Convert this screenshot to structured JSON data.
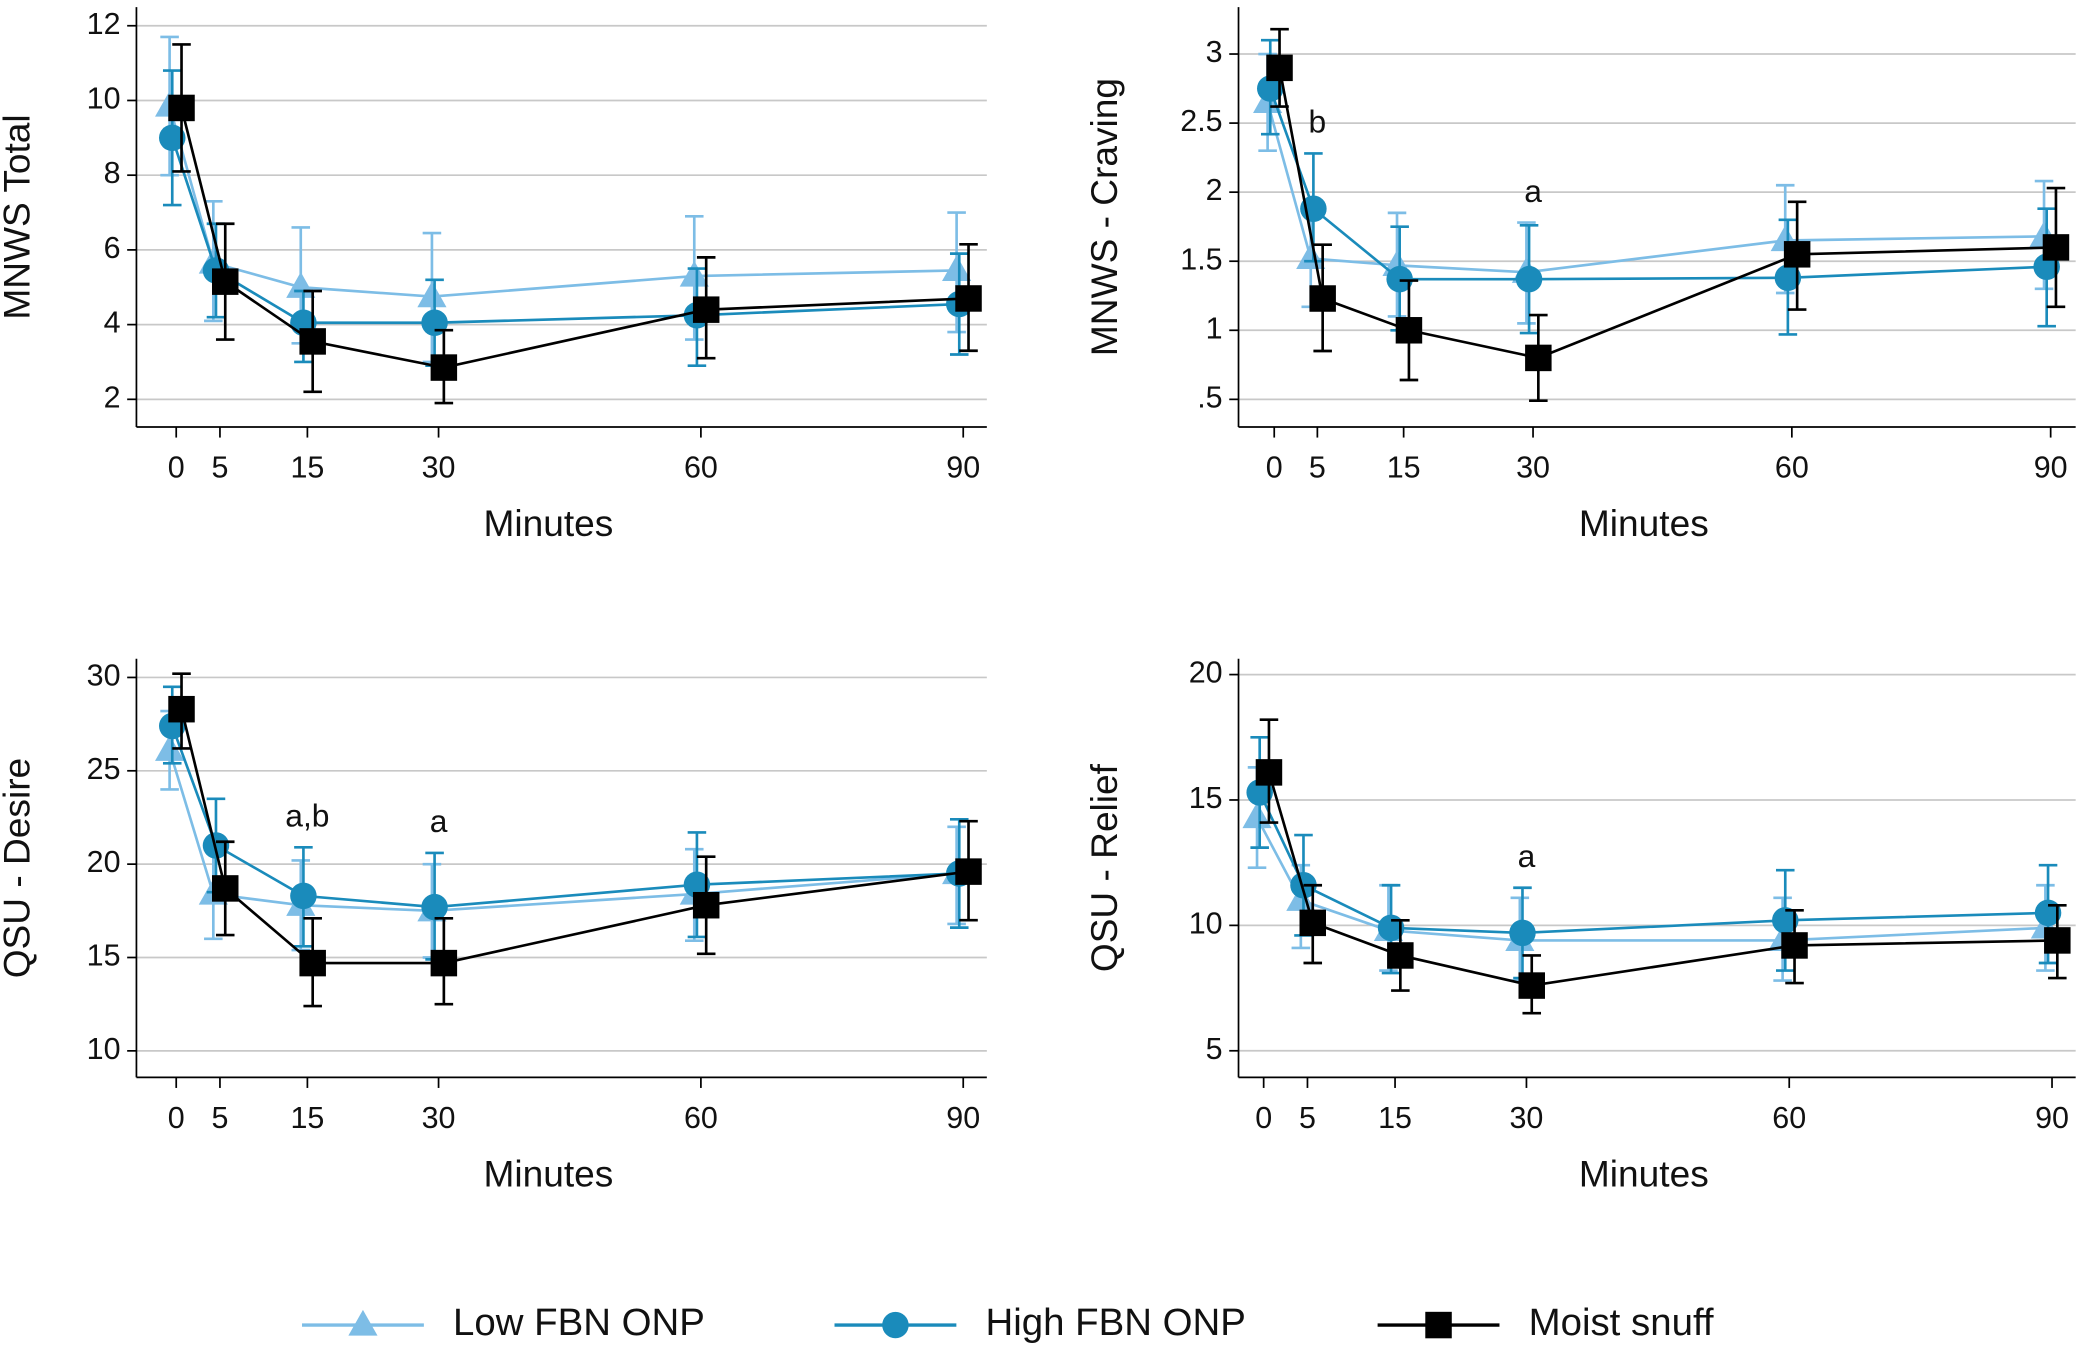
{
  "legend": {
    "position": "bottom",
    "entries": [
      {
        "name": "Low FBN ONP",
        "color": "#7dbde6",
        "marker": "triangle"
      },
      {
        "name": "High FBN ONP",
        "color": "#1a8bbb",
        "marker": "circle"
      },
      {
        "name": "Moist snuff",
        "color": "#000000",
        "marker": "square"
      }
    ]
  },
  "chart_data": [
    {
      "type": "line",
      "ylabel": "MNWS Total",
      "xlabel": "Minutes",
      "x": [
        0,
        5,
        15,
        30,
        60,
        90
      ],
      "xlim": [
        -4.55,
        92.7
      ],
      "xticks": [
        0,
        5,
        15,
        30,
        60,
        90
      ],
      "ylim": [
        1.26,
        12.5
      ],
      "yticks": [
        2,
        4,
        6,
        8,
        10,
        12
      ],
      "grid": true,
      "series": [
        {
          "values": [
            9.85,
            5.65,
            5.0,
            4.75,
            5.3,
            5.45
          ],
          "lower": [
            8.0,
            4.1,
            3.5,
            3.0,
            3.6,
            3.8
          ],
          "upper": [
            11.7,
            7.3,
            6.6,
            6.45,
            6.9,
            7.0
          ]
        },
        {
          "values": [
            9.0,
            5.45,
            4.05,
            4.05,
            4.25,
            4.55
          ],
          "lower": [
            7.2,
            4.2,
            3.0,
            2.9,
            2.9,
            3.2
          ],
          "upper": [
            10.8,
            6.7,
            4.9,
            5.2,
            5.5,
            5.9
          ]
        },
        {
          "values": [
            9.8,
            5.15,
            3.55,
            2.85,
            4.4,
            4.7
          ],
          "lower": [
            8.1,
            3.6,
            2.2,
            1.9,
            3.1,
            3.3
          ],
          "upper": [
            11.5,
            6.7,
            4.9,
            3.85,
            5.8,
            6.15
          ]
        }
      ],
      "annotations": []
    },
    {
      "type": "line",
      "ylabel": "MNWS - Craving",
      "xlabel": "Minutes",
      "x": [
        0,
        5,
        15,
        30,
        60,
        90
      ],
      "xlim": [
        -4.14,
        92.9
      ],
      "xticks": [
        0,
        5,
        15,
        30,
        60,
        90
      ],
      "ylim": [
        0.3,
        3.34
      ],
      "yticks": [
        {
          "value": 0.5,
          "label": ".5"
        },
        1,
        1.5,
        2,
        2.5,
        3
      ],
      "grid": true,
      "series": [
        {
          "values": [
            2.65,
            1.52,
            1.47,
            1.42,
            1.65,
            1.68
          ],
          "lower": [
            2.3,
            1.17,
            1.1,
            1.05,
            1.27,
            1.3
          ],
          "upper": [
            3.0,
            1.87,
            1.85,
            1.78,
            2.05,
            2.08
          ]
        },
        {
          "values": [
            2.75,
            1.88,
            1.37,
            1.37,
            1.38,
            1.46
          ],
          "lower": [
            2.42,
            1.5,
            1.0,
            0.98,
            0.97,
            1.03
          ],
          "upper": [
            3.1,
            2.28,
            1.75,
            1.76,
            1.8,
            1.88
          ]
        },
        {
          "values": [
            2.9,
            1.23,
            1.0,
            0.8,
            1.55,
            1.6
          ],
          "lower": [
            2.62,
            0.85,
            0.64,
            0.49,
            1.15,
            1.17
          ],
          "upper": [
            3.18,
            1.62,
            1.36,
            1.11,
            1.93,
            2.03
          ]
        }
      ],
      "annotations": [
        {
          "text": "b",
          "x": 5
        },
        {
          "text": "a",
          "x": 30
        }
      ]
    },
    {
      "type": "line",
      "ylabel": "QSU - Desire",
      "xlabel": "Minutes",
      "x": [
        0,
        5,
        15,
        30,
        60,
        90
      ],
      "xlim": [
        -4.55,
        92.7
      ],
      "xticks": [
        0,
        5,
        15,
        30,
        60,
        90
      ],
      "ylim": [
        8.58,
        31
      ],
      "yticks": [
        10,
        15,
        20,
        25,
        30
      ],
      "grid": true,
      "series": [
        {
          "values": [
            26.1,
            18.4,
            17.8,
            17.5,
            18.4,
            19.5
          ],
          "lower": [
            24.0,
            16.0,
            15.4,
            15.0,
            15.9,
            16.8
          ],
          "upper": [
            28.2,
            20.8,
            20.2,
            20.0,
            20.8,
            22.0
          ]
        },
        {
          "values": [
            27.4,
            21.0,
            18.3,
            17.7,
            18.9,
            19.5
          ],
          "lower": [
            25.4,
            18.5,
            15.6,
            14.9,
            16.1,
            16.6
          ],
          "upper": [
            29.5,
            23.5,
            20.9,
            20.6,
            21.7,
            22.4
          ]
        },
        {
          "values": [
            28.3,
            18.7,
            14.7,
            14.7,
            17.8,
            19.6
          ],
          "lower": [
            26.2,
            16.2,
            12.4,
            12.5,
            15.2,
            17.0
          ],
          "upper": [
            30.2,
            21.2,
            17.1,
            17.1,
            20.4,
            22.3
          ]
        }
      ],
      "annotations": [
        {
          "text": "a,b",
          "x": 15
        },
        {
          "text": "a",
          "x": 30
        }
      ]
    },
    {
      "type": "line",
      "ylabel": "QSU - Relief",
      "xlabel": "Minutes",
      "x": [
        0,
        5,
        15,
        30,
        60,
        90
      ],
      "xlim": [
        -2.87,
        92.7
      ],
      "xticks": [
        0,
        5,
        15,
        30,
        60,
        90
      ],
      "ylim": [
        3.94,
        20.63
      ],
      "yticks": [
        5,
        10,
        15,
        20
      ],
      "grid": true,
      "series": [
        {
          "values": [
            14.3,
            11.0,
            9.8,
            9.4,
            9.4,
            9.9
          ],
          "lower": [
            12.3,
            9.1,
            8.2,
            7.8,
            7.8,
            8.2
          ],
          "upper": [
            16.3,
            12.4,
            11.6,
            11.1,
            11.1,
            11.6
          ]
        },
        {
          "values": [
            15.3,
            11.6,
            9.9,
            9.7,
            10.2,
            10.5
          ],
          "lower": [
            13.1,
            9.6,
            8.1,
            7.9,
            8.2,
            8.5
          ],
          "upper": [
            17.5,
            13.6,
            11.6,
            11.5,
            12.2,
            12.4
          ]
        },
        {
          "values": [
            16.1,
            10.1,
            8.8,
            7.6,
            9.2,
            9.4
          ],
          "lower": [
            14.1,
            8.5,
            7.4,
            6.5,
            7.7,
            7.9
          ],
          "upper": [
            18.2,
            11.6,
            10.2,
            8.8,
            10.6,
            10.8
          ]
        }
      ],
      "annotations": [
        {
          "text": "a",
          "x": 30
        }
      ]
    }
  ]
}
